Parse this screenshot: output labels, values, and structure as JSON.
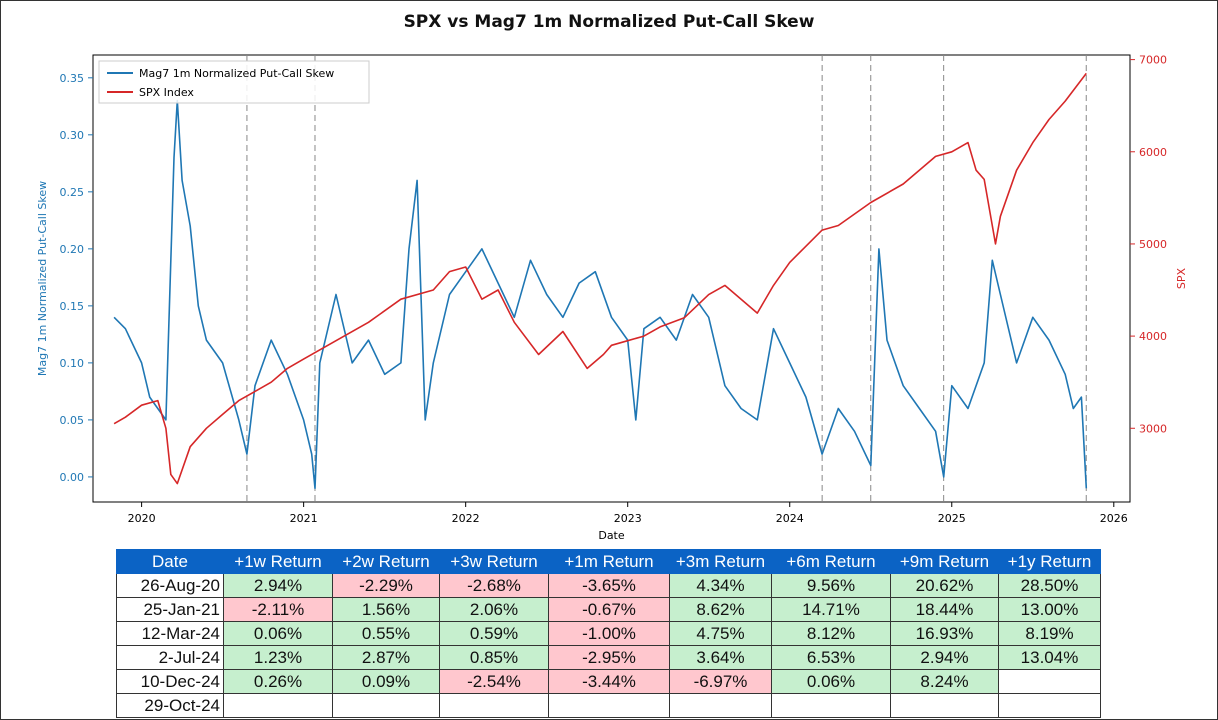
{
  "chart_data": {
    "type": "line",
    "title": "SPX vs Mag7 1m Normalized Put-Call Skew",
    "xlabel": "Date",
    "ylabel_left": "Mag7 1m Normalized Put-Call Skew",
    "ylabel_right": "SPX",
    "x_ticks": [
      "2020",
      "2021",
      "2022",
      "2023",
      "2024",
      "2025",
      "2026"
    ],
    "y_left_ticks": [
      "0.00",
      "0.05",
      "0.10",
      "0.15",
      "0.20",
      "0.25",
      "0.30",
      "0.35"
    ],
    "y_right_ticks": [
      "3000",
      "4000",
      "5000",
      "6000",
      "7000"
    ],
    "xlim": [
      2019.7,
      2026.1
    ],
    "ylim_left": [
      -0.022,
      0.37
    ],
    "ylim_right": [
      2200,
      7050
    ],
    "vlines": [
      2020.65,
      2021.07,
      2024.2,
      2024.5,
      2024.95,
      2025.83
    ],
    "legend_position": "upper-left",
    "series": [
      {
        "name": "Mag7 1m Normalized Put-Call Skew",
        "axis": "left",
        "color": "#1f77b4",
        "x": [
          2019.83,
          2019.9,
          2020.0,
          2020.05,
          2020.1,
          2020.15,
          2020.2,
          2020.22,
          2020.25,
          2020.3,
          2020.35,
          2020.4,
          2020.5,
          2020.6,
          2020.65,
          2020.7,
          2020.8,
          2020.9,
          2021.0,
          2021.05,
          2021.07,
          2021.1,
          2021.2,
          2021.3,
          2021.4,
          2021.5,
          2021.6,
          2021.65,
          2021.7,
          2021.75,
          2021.8,
          2021.9,
          2022.0,
          2022.1,
          2022.2,
          2022.3,
          2022.4,
          2022.5,
          2022.6,
          2022.7,
          2022.8,
          2022.9,
          2023.0,
          2023.05,
          2023.1,
          2023.2,
          2023.3,
          2023.4,
          2023.5,
          2023.6,
          2023.7,
          2023.8,
          2023.9,
          2024.0,
          2024.1,
          2024.2,
          2024.3,
          2024.4,
          2024.5,
          2024.55,
          2024.6,
          2024.7,
          2024.8,
          2024.9,
          2024.95,
          2025.0,
          2025.1,
          2025.2,
          2025.25,
          2025.3,
          2025.4,
          2025.5,
          2025.6,
          2025.7,
          2025.75,
          2025.8,
          2025.83
        ],
        "y": [
          0.14,
          0.13,
          0.1,
          0.07,
          0.06,
          0.05,
          0.28,
          0.33,
          0.26,
          0.22,
          0.15,
          0.12,
          0.1,
          0.05,
          0.02,
          0.08,
          0.12,
          0.09,
          0.05,
          0.02,
          -0.01,
          0.1,
          0.16,
          0.1,
          0.12,
          0.09,
          0.1,
          0.2,
          0.26,
          0.05,
          0.1,
          0.16,
          0.18,
          0.2,
          0.17,
          0.14,
          0.19,
          0.16,
          0.14,
          0.17,
          0.18,
          0.14,
          0.12,
          0.05,
          0.13,
          0.14,
          0.12,
          0.16,
          0.14,
          0.08,
          0.06,
          0.05,
          0.13,
          0.1,
          0.07,
          0.02,
          0.06,
          0.04,
          0.01,
          0.2,
          0.12,
          0.08,
          0.06,
          0.04,
          0.0,
          0.08,
          0.06,
          0.1,
          0.19,
          0.16,
          0.1,
          0.14,
          0.12,
          0.09,
          0.06,
          0.07,
          -0.01
        ]
      },
      {
        "name": "SPX Index",
        "axis": "right",
        "color": "#d62728",
        "x": [
          2019.83,
          2019.9,
          2020.0,
          2020.1,
          2020.15,
          2020.18,
          2020.22,
          2020.3,
          2020.4,
          2020.5,
          2020.6,
          2020.7,
          2020.8,
          2020.9,
          2021.0,
          2021.2,
          2021.4,
          2021.6,
          2021.8,
          2021.9,
          2022.0,
          2022.1,
          2022.2,
          2022.3,
          2022.45,
          2022.6,
          2022.75,
          2022.85,
          2022.9,
          2023.0,
          2023.1,
          2023.2,
          2023.35,
          2023.5,
          2023.6,
          2023.8,
          2023.9,
          2024.0,
          2024.2,
          2024.3,
          2024.5,
          2024.7,
          2024.9,
          2025.0,
          2025.1,
          2025.15,
          2025.2,
          2025.27,
          2025.3,
          2025.4,
          2025.5,
          2025.6,
          2025.7,
          2025.83
        ],
        "y": [
          3050,
          3120,
          3250,
          3300,
          3000,
          2500,
          2400,
          2800,
          3000,
          3150,
          3300,
          3400,
          3500,
          3650,
          3750,
          3950,
          4150,
          4400,
          4500,
          4700,
          4750,
          4400,
          4500,
          4150,
          3800,
          4050,
          3650,
          3800,
          3900,
          3950,
          4000,
          4100,
          4200,
          4450,
          4550,
          4250,
          4550,
          4800,
          5150,
          5200,
          5450,
          5650,
          5950,
          6000,
          6100,
          5800,
          5700,
          5000,
          5300,
          5800,
          6100,
          6350,
          6550,
          6850
        ]
      }
    ]
  },
  "returns_table": {
    "headers": [
      "Date",
      "+1w Return",
      "+2w Return",
      "+3w Return",
      "+1m Return",
      "+3m Return",
      "+6m Return",
      "+9m Return",
      "+1y Return"
    ],
    "rows": [
      [
        "26-Aug-20",
        "2.94%",
        "-2.29%",
        "-2.68%",
        "-3.65%",
        "4.34%",
        "9.56%",
        "20.62%",
        "28.50%"
      ],
      [
        "25-Jan-21",
        "-2.11%",
        "1.56%",
        "2.06%",
        "-0.67%",
        "8.62%",
        "14.71%",
        "18.44%",
        "13.00%"
      ],
      [
        "12-Mar-24",
        "0.06%",
        "0.55%",
        "0.59%",
        "-1.00%",
        "4.75%",
        "8.12%",
        "16.93%",
        "8.19%"
      ],
      [
        "2-Jul-24",
        "1.23%",
        "2.87%",
        "0.85%",
        "-2.95%",
        "3.64%",
        "6.53%",
        "2.94%",
        "13.04%"
      ],
      [
        "10-Dec-24",
        "0.26%",
        "0.09%",
        "-2.54%",
        "-3.44%",
        "-6.97%",
        "0.06%",
        "8.24%",
        ""
      ],
      [
        "29-Oct-24",
        "",
        "",
        "",
        "",
        "",
        "",
        "",
        ""
      ]
    ]
  },
  "colors": {
    "positive": "#c6efce",
    "negative": "#ffc7ce",
    "header": "#0b63c5"
  }
}
